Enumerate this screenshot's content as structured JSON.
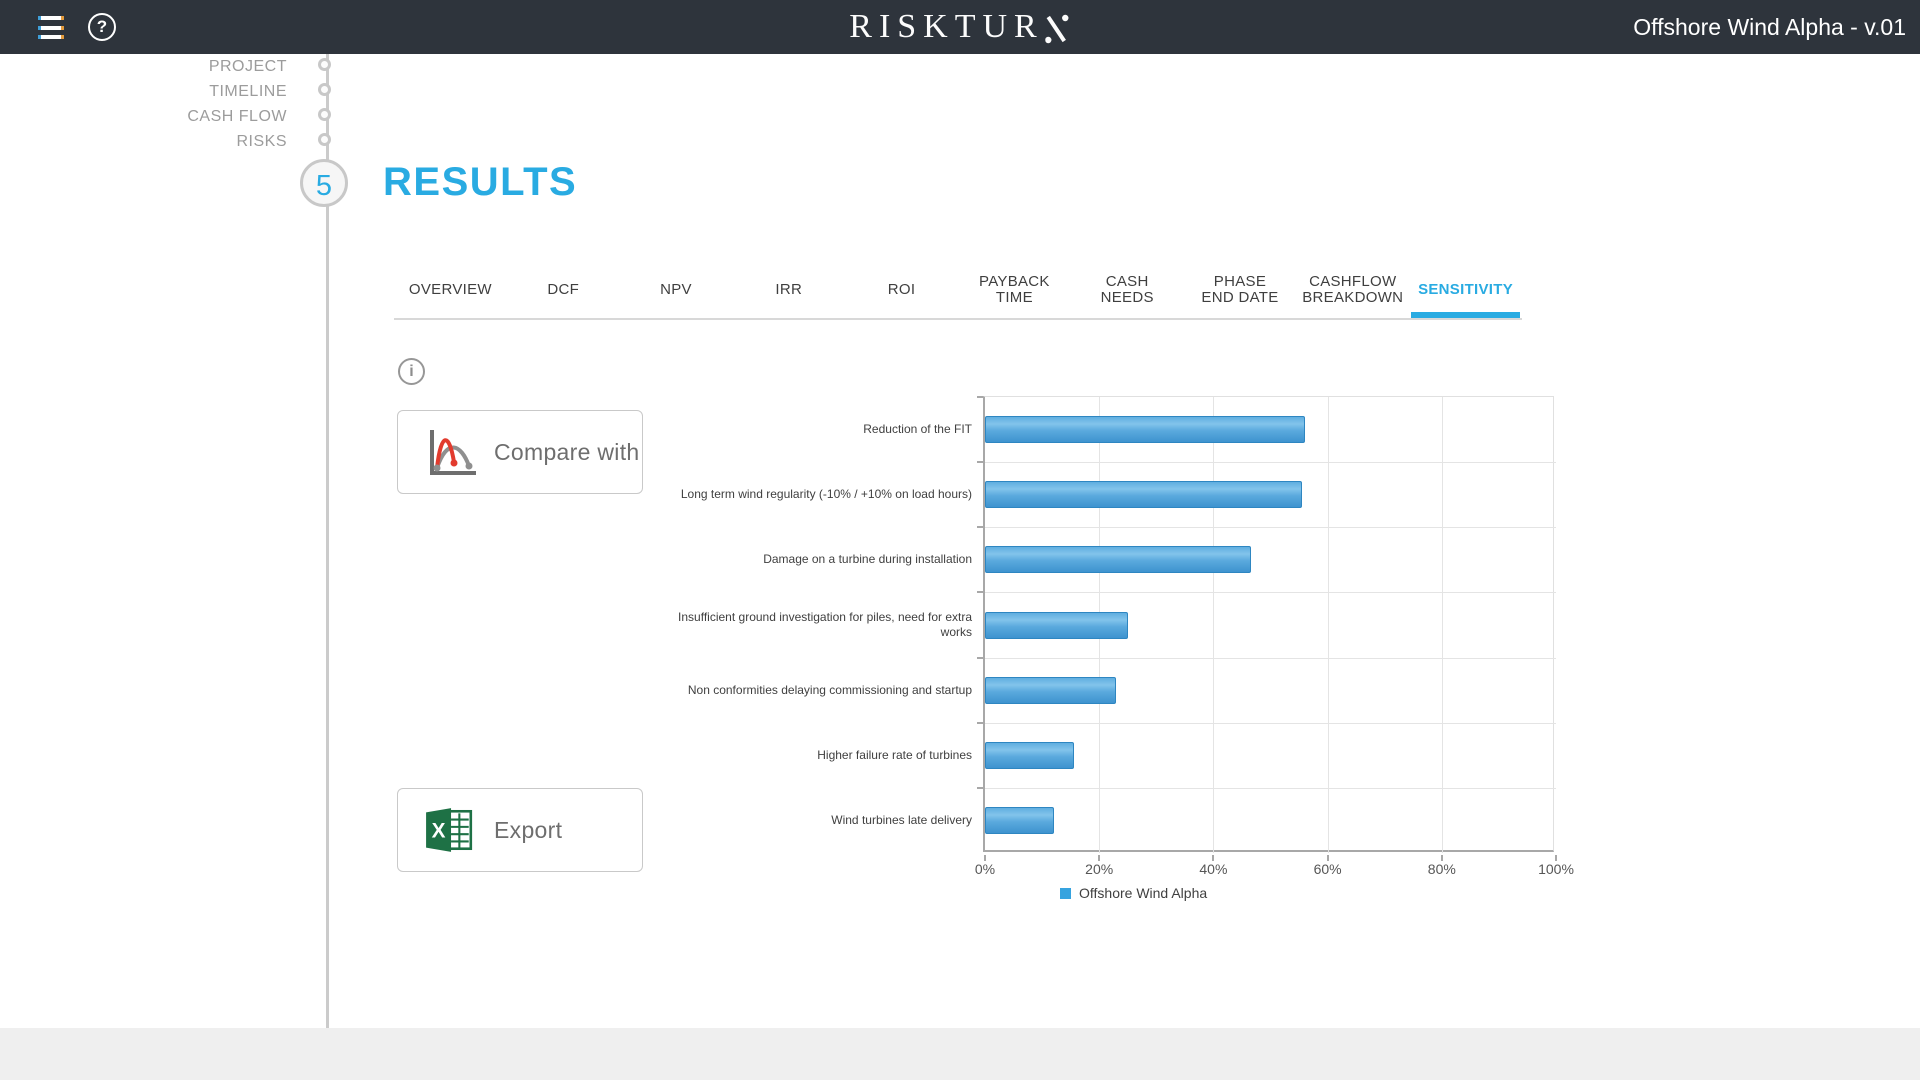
{
  "topbar": {
    "logo_text": "RISKTURN",
    "help_glyph": "?",
    "project_title": "Offshore Wind Alpha - v.01"
  },
  "stepper": {
    "steps": [
      "PROJECT",
      "TIMELINE",
      "CASH FLOW",
      "RISKS"
    ],
    "current_number": "5",
    "current_label": "RESULTS"
  },
  "tabs": {
    "items": [
      {
        "label": "OVERVIEW",
        "active": false
      },
      {
        "label": "DCF",
        "active": false
      },
      {
        "label": "NPV",
        "active": false
      },
      {
        "label": "IRR",
        "active": false
      },
      {
        "label": "ROI",
        "active": false
      },
      {
        "label": "PAYBACK\nTIME",
        "active": false
      },
      {
        "label": "CASH\nNEEDS",
        "active": false
      },
      {
        "label": "PHASE\nEND DATE",
        "active": false
      },
      {
        "label": "CASHFLOW\nBREAKDOWN",
        "active": false
      },
      {
        "label": "SENSITIVITY",
        "active": true
      }
    ]
  },
  "info_icon_glyph": "i",
  "actions": {
    "compare_label": "Compare with",
    "export_label": "Export"
  },
  "chart_data": {
    "type": "bar",
    "orientation": "horizontal",
    "title": "",
    "categories": [
      "Reduction of the FIT",
      "Long term wind regularity (-10% / +10% on load hours)",
      "Damage on a turbine during installation",
      "Insufficient ground investigation for piles, need for extra works",
      "Non conformities delaying commissioning and startup",
      "Higher failure rate of turbines",
      "Wind turbines late delivery"
    ],
    "values": [
      56,
      55.5,
      46.5,
      25,
      23,
      15.5,
      12
    ],
    "unit": "%",
    "xlim": [
      0,
      100
    ],
    "x_ticks": [
      "0%",
      "20%",
      "40%",
      "60%",
      "80%",
      "100%"
    ],
    "grid": true,
    "legend": "Offshore Wind Alpha",
    "legend_position": "bottom"
  },
  "colors": {
    "accent_blue": "#29abe2",
    "bar_fill": "#55a7db",
    "bar_border": "#2e86c1",
    "topbar_bg": "#2e343c",
    "excel_green": "#1e7145",
    "curve_red": "#e23b2e"
  }
}
